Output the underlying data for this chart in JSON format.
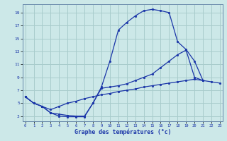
{
  "title": "Graphe des températures (°c)",
  "bg_color": "#cce8e8",
  "grid_color": "#a8cccc",
  "line_color": "#1a35a8",
  "x_ticks": [
    0,
    1,
    2,
    3,
    4,
    5,
    6,
    7,
    8,
    9,
    10,
    11,
    12,
    13,
    14,
    15,
    16,
    17,
    18,
    19,
    20,
    21,
    22,
    23
  ],
  "y_ticks": [
    3,
    5,
    7,
    9,
    11,
    13,
    15,
    17,
    19
  ],
  "ylim": [
    2.2,
    20.3
  ],
  "xlim": [
    -0.3,
    23.3
  ],
  "line1_x": [
    0,
    1,
    2,
    3,
    4,
    5,
    6,
    7,
    8,
    9,
    10,
    11,
    12,
    13,
    14,
    15,
    16,
    17,
    18,
    19,
    20,
    21
  ],
  "line1_y": [
    6.0,
    5.0,
    4.5,
    3.5,
    3.0,
    2.9,
    2.9,
    2.9,
    5.0,
    7.5,
    11.5,
    16.3,
    17.5,
    18.5,
    19.3,
    19.5,
    19.3,
    19.0,
    14.5,
    13.3,
    11.5,
    8.5
  ],
  "line2_x": [
    0,
    1,
    2,
    3,
    4,
    5,
    6,
    7,
    8,
    9,
    10,
    11,
    12,
    13,
    14,
    15,
    16,
    17,
    18,
    19,
    20,
    21
  ],
  "line2_y": [
    6.0,
    5.0,
    4.5,
    3.5,
    3.3,
    3.1,
    3.0,
    3.0,
    5.0,
    7.3,
    7.5,
    7.7,
    8.0,
    8.5,
    9.0,
    9.5,
    10.5,
    11.5,
    12.5,
    13.2,
    9.0,
    8.5
  ],
  "line3_x": [
    0,
    1,
    2,
    3,
    4,
    5,
    6,
    7,
    8,
    9,
    10,
    11,
    12,
    13,
    14,
    15,
    16,
    17,
    18,
    19,
    20,
    21,
    22,
    23
  ],
  "line3_y": [
    6.0,
    5.0,
    4.5,
    4.0,
    4.5,
    5.0,
    5.3,
    5.7,
    6.0,
    6.3,
    6.5,
    6.8,
    7.0,
    7.2,
    7.5,
    7.7,
    7.9,
    8.1,
    8.3,
    8.5,
    8.7,
    8.5,
    8.3,
    8.1
  ]
}
